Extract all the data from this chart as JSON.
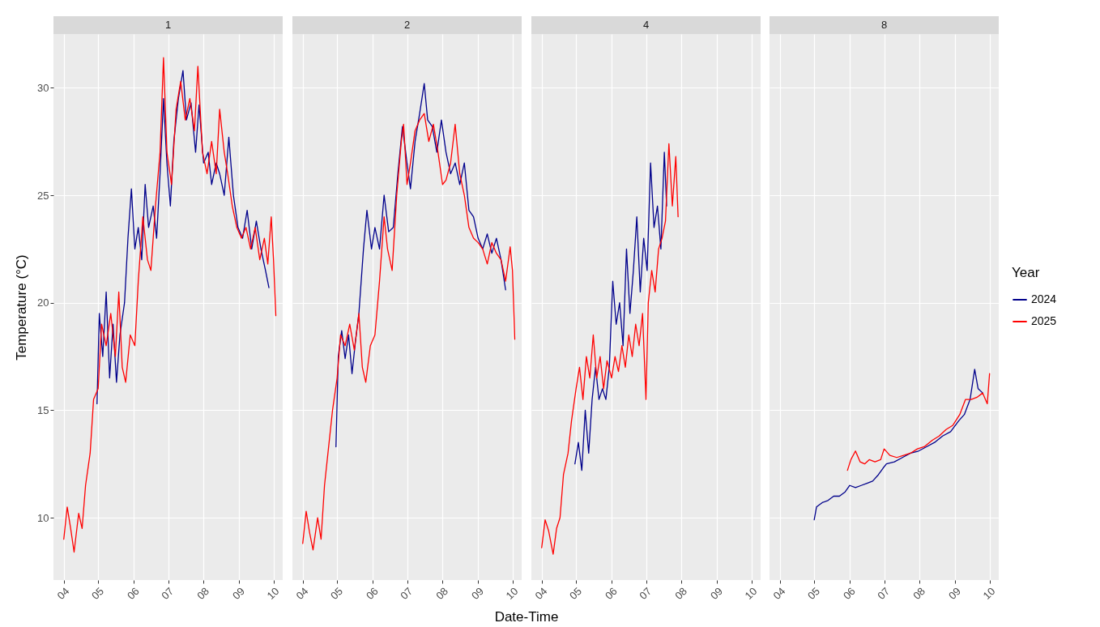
{
  "chart_data": [
    {
      "type": "line",
      "title": "1",
      "ylabel": "Temperature (°C)",
      "xlim": [
        "--03-23",
        "--10-09"
      ],
      "ylim": [
        7.1,
        32.5
      ],
      "xticks": [
        {
          "value": "--04-01",
          "label": "04"
        },
        {
          "value": "--05-01",
          "label": "05"
        },
        {
          "value": "--06-01",
          "label": "06"
        },
        {
          "value": "--07-01",
          "label": "07"
        },
        {
          "value": "--08-01",
          "label": "08"
        },
        {
          "value": "--09-01",
          "label": "09"
        },
        {
          "value": "--10-01",
          "label": "10"
        }
      ],
      "yticks": [
        10,
        15,
        20,
        25,
        30
      ],
      "grid": true,
      "series": [
        {
          "color": "#00008b",
          "x": [
            "--04-30",
            "--05-02",
            "--05-05",
            "--05-08",
            "--05-11",
            "--05-14",
            "--05-17",
            "--05-20",
            "--05-24",
            "--05-27",
            "--05-30",
            "--06-02",
            "--06-05",
            "--06-08",
            "--06-11",
            "--06-14",
            "--06-18",
            "--06-21",
            "--06-24",
            "--06-27",
            "--06-30",
            "--07-03",
            "--07-06",
            "--07-10",
            "--07-14",
            "--07-17",
            "--07-21",
            "--07-25",
            "--07-28",
            "--08-01",
            "--08-05",
            "--08-08",
            "--08-12",
            "--08-15",
            "--08-19",
            "--08-23",
            "--08-27",
            "--08-31",
            "--09-04",
            "--09-08",
            "--09-12",
            "--09-16",
            "--09-20",
            "--09-24",
            "--09-27"
          ],
          "values": [
            15.3,
            19.5,
            17.5,
            20.5,
            16.5,
            19,
            16.3,
            18.5,
            20,
            23,
            25.3,
            22.5,
            23.5,
            22,
            25.5,
            23.5,
            24.5,
            23,
            26,
            29.5,
            26.5,
            24.5,
            27.5,
            29.5,
            30.8,
            28.5,
            29.3,
            27,
            29.2,
            26.5,
            27,
            25.5,
            26.5,
            26,
            25,
            27.7,
            25,
            23.5,
            23,
            24.3,
            22.5,
            23.8,
            22.5,
            21.5,
            20.7
          ]
        },
        {
          "color": "#ff0000",
          "x": [
            "--04-01",
            "--04-04",
            "--04-07",
            "--04-10",
            "--04-14",
            "--04-17",
            "--04-20",
            "--04-24",
            "--04-27",
            "--05-01",
            "--05-04",
            "--05-08",
            "--05-12",
            "--05-16",
            "--05-19",
            "--05-22",
            "--05-25",
            "--05-29",
            "--06-02",
            "--06-05",
            "--06-09",
            "--06-13",
            "--06-16",
            "--06-20",
            "--06-24",
            "--06-27",
            "--06-30",
            "--07-04",
            "--07-08",
            "--07-12",
            "--07-16",
            "--07-20",
            "--07-24",
            "--07-27",
            "--07-31",
            "--08-04",
            "--08-08",
            "--08-12",
            "--08-15",
            "--08-19",
            "--08-22",
            "--08-26",
            "--08-30",
            "--09-03",
            "--09-07",
            "--09-11",
            "--09-15",
            "--09-19",
            "--09-23",
            "--09-26",
            "--09-29",
            "--10-01",
            "--10-03"
          ],
          "values": [
            9,
            10.5,
            9.5,
            8.4,
            10.2,
            9.5,
            11.5,
            13,
            15.5,
            16,
            19,
            18,
            19.5,
            17.5,
            20.5,
            17,
            16.3,
            18.5,
            18,
            21,
            24,
            22,
            21.5,
            24.5,
            27,
            31.4,
            27,
            25.5,
            29,
            30.3,
            28.5,
            29.5,
            28,
            31,
            27,
            26,
            27.5,
            26,
            29,
            27,
            26,
            24.5,
            23.5,
            23,
            23.5,
            22.5,
            23.5,
            22,
            23,
            21.8,
            24,
            22,
            19.4
          ]
        }
      ]
    },
    {
      "type": "line",
      "title": "2",
      "xlabel": "Date-Time",
      "xlim": [
        "--03-23",
        "--10-09"
      ],
      "ylim": [
        7.1,
        32.5
      ],
      "xticks": [
        {
          "value": "--04-01",
          "label": "04"
        },
        {
          "value": "--05-01",
          "label": "05"
        },
        {
          "value": "--06-01",
          "label": "06"
        },
        {
          "value": "--07-01",
          "label": "07"
        },
        {
          "value": "--08-01",
          "label": "08"
        },
        {
          "value": "--09-01",
          "label": "09"
        },
        {
          "value": "--10-01",
          "label": "10"
        }
      ],
      "yticks": [
        10,
        15,
        20,
        25,
        30
      ],
      "grid": true,
      "tick_labels": "x",
      "series": [
        {
          "color": "#00008b",
          "x": [
            "--04-30",
            "--05-02",
            "--05-05",
            "--05-08",
            "--05-11",
            "--05-14",
            "--05-17",
            "--05-20",
            "--05-24",
            "--05-27",
            "--05-31",
            "--06-03",
            "--06-07",
            "--06-11",
            "--06-15",
            "--06-19",
            "--06-23",
            "--06-27",
            "--07-01",
            "--07-04",
            "--07-08",
            "--07-12",
            "--07-16",
            "--07-19",
            "--07-23",
            "--07-27",
            "--07-31",
            "--08-04",
            "--08-08",
            "--08-12",
            "--08-16",
            "--08-20",
            "--08-24",
            "--08-28",
            "--09-01",
            "--09-05",
            "--09-09",
            "--09-13",
            "--09-17",
            "--09-21",
            "--09-25"
          ],
          "values": [
            13.3,
            17.5,
            18.7,
            17.4,
            18.5,
            16.7,
            18.2,
            19.5,
            22.5,
            24.3,
            22.5,
            23.5,
            22.5,
            25,
            23.3,
            23.5,
            26,
            28.2,
            26.5,
            25.3,
            27.5,
            28.8,
            30.2,
            28.5,
            28.2,
            27,
            28.5,
            27,
            26,
            26.5,
            25.5,
            26.5,
            24.3,
            24,
            23,
            22.5,
            23.2,
            22.3,
            23,
            22,
            20.6
          ]
        },
        {
          "color": "#ff0000",
          "x": [
            "--04-01",
            "--04-04",
            "--04-07",
            "--04-10",
            "--04-14",
            "--04-17",
            "--04-20",
            "--04-24",
            "--04-27",
            "--05-01",
            "--05-04",
            "--05-08",
            "--05-12",
            "--05-16",
            "--05-20",
            "--05-23",
            "--05-26",
            "--05-30",
            "--06-03",
            "--06-07",
            "--06-11",
            "--06-14",
            "--06-18",
            "--06-22",
            "--06-26",
            "--06-28",
            "--07-01",
            "--07-04",
            "--07-08",
            "--07-12",
            "--07-16",
            "--07-20",
            "--07-24",
            "--07-28",
            "--08-01",
            "--08-04",
            "--08-08",
            "--08-12",
            "--08-16",
            "--08-20",
            "--08-24",
            "--08-28",
            "--09-01",
            "--09-05",
            "--09-09",
            "--09-13",
            "--09-17",
            "--09-21",
            "--09-25",
            "--09-29",
            "--10-01",
            "--10-03"
          ],
          "values": [
            8.8,
            10.3,
            9.3,
            8.5,
            10,
            9,
            11.5,
            13.5,
            15,
            16.5,
            18.5,
            18,
            19,
            17.8,
            19.5,
            17,
            16.3,
            18,
            18.5,
            21,
            24,
            22.5,
            21.5,
            25,
            27.5,
            28.3,
            25.5,
            26.5,
            28,
            28.5,
            28.8,
            27.5,
            28.3,
            27,
            25.5,
            25.7,
            26.5,
            28.3,
            26,
            25,
            23.5,
            23,
            22.8,
            22.5,
            21.8,
            22.8,
            22.3,
            22,
            21,
            22.6,
            21.5,
            18.3
          ]
        }
      ]
    },
    {
      "type": "line",
      "title": "4",
      "xlim": [
        "--03-23",
        "--10-09"
      ],
      "ylim": [
        7.1,
        32.5
      ],
      "xticks": [
        {
          "value": "--04-01",
          "label": "04"
        },
        {
          "value": "--05-01",
          "label": "05"
        },
        {
          "value": "--06-01",
          "label": "06"
        },
        {
          "value": "--07-01",
          "label": "07"
        },
        {
          "value": "--08-01",
          "label": "08"
        },
        {
          "value": "--09-01",
          "label": "09"
        },
        {
          "value": "--10-01",
          "label": "10"
        }
      ],
      "yticks": [
        10,
        15,
        20,
        25,
        30
      ],
      "grid": true,
      "tick_labels": "x",
      "series": [
        {
          "color": "#00008b",
          "x": [
            "--04-30",
            "--05-03",
            "--05-06",
            "--05-09",
            "--05-12",
            "--05-15",
            "--05-18",
            "--05-21",
            "--05-24",
            "--05-27",
            "--05-30",
            "--06-02",
            "--06-05",
            "--06-08",
            "--06-11",
            "--06-14",
            "--06-17",
            "--06-20",
            "--06-23",
            "--06-26",
            "--06-29",
            "--07-02",
            "--07-05",
            "--07-08",
            "--07-11",
            "--07-14",
            "--07-17",
            "--07-19"
          ],
          "values": [
            12.5,
            13.5,
            12.2,
            15,
            13,
            15.5,
            17,
            15.5,
            16,
            15.5,
            17,
            21,
            19,
            20,
            18,
            22.5,
            19.5,
            21.5,
            24,
            20.5,
            23,
            21.5,
            26.5,
            23.5,
            24.5,
            22.5,
            27,
            24.5
          ]
        },
        {
          "color": "#ff0000",
          "x": [
            "--04-01",
            "--04-04",
            "--04-07",
            "--04-11",
            "--04-14",
            "--04-17",
            "--04-20",
            "--04-24",
            "--04-27",
            "--05-01",
            "--05-04",
            "--05-07",
            "--05-10",
            "--05-13",
            "--05-16",
            "--05-19",
            "--05-22",
            "--05-25",
            "--05-28",
            "--06-01",
            "--06-04",
            "--06-07",
            "--06-10",
            "--06-13",
            "--06-16",
            "--06-19",
            "--06-22",
            "--06-25",
            "--06-28",
            "--07-01",
            "--07-03",
            "--07-06",
            "--07-09",
            "--07-12",
            "--07-15",
            "--07-18",
            "--07-21",
            "--07-24",
            "--07-27",
            "--07-29"
          ],
          "values": [
            8.6,
            9.9,
            9.4,
            8.3,
            9.5,
            10,
            12,
            13,
            14.5,
            16,
            17,
            15.5,
            17.5,
            16.5,
            18.5,
            16.5,
            17.5,
            16,
            17.3,
            16.5,
            17.5,
            16.8,
            18,
            17,
            18.5,
            17.5,
            19,
            18,
            19.5,
            15.5,
            20,
            21.5,
            20.5,
            22.5,
            23,
            23.8,
            27.4,
            24.5,
            26.8,
            24
          ]
        }
      ]
    },
    {
      "type": "line",
      "title": "8",
      "legend_title": "Year",
      "legend": "right",
      "xlim": [
        "--03-23",
        "--10-09"
      ],
      "ylim": [
        7.1,
        32.5
      ],
      "xticks": [
        {
          "value": "--04-01",
          "label": "04"
        },
        {
          "value": "--05-01",
          "label": "05"
        },
        {
          "value": "--06-01",
          "label": "06"
        },
        {
          "value": "--07-01",
          "label": "07"
        },
        {
          "value": "--08-01",
          "label": "08"
        },
        {
          "value": "--09-01",
          "label": "09"
        },
        {
          "value": "--10-01",
          "label": "10"
        }
      ],
      "yticks": [
        10,
        15,
        20,
        25,
        30
      ],
      "grid": true,
      "tick_labels": "x",
      "series": [
        {
          "name": "2024",
          "color": "#00008b",
          "x": [
            "--05-01",
            "--05-03",
            "--05-08",
            "--05-13",
            "--05-18",
            "--05-23",
            "--05-28",
            "--06-01",
            "--06-06",
            "--06-11",
            "--06-16",
            "--06-21",
            "--06-26",
            "--06-30",
            "--07-03",
            "--07-10",
            "--07-17",
            "--07-24",
            "--07-31",
            "--08-07",
            "--08-14",
            "--08-21",
            "--08-28",
            "--09-04",
            "--09-09",
            "--09-14",
            "--09-18",
            "--09-21",
            "--09-25"
          ],
          "values": [
            9.9,
            10.5,
            10.7,
            10.8,
            11,
            11,
            11.2,
            11.5,
            11.4,
            11.5,
            11.6,
            11.7,
            12,
            12.3,
            12.5,
            12.6,
            12.8,
            13,
            13.1,
            13.3,
            13.5,
            13.8,
            14,
            14.5,
            14.8,
            15.5,
            16.9,
            16,
            15.8
          ]
        },
        {
          "name": "2025",
          "color": "#ff0000",
          "x": [
            "--05-30",
            "--06-02",
            "--06-06",
            "--06-10",
            "--06-14",
            "--06-18",
            "--06-23",
            "--06-28",
            "--07-01",
            "--07-06",
            "--07-12",
            "--07-18",
            "--07-24",
            "--07-30",
            "--08-05",
            "--08-12",
            "--08-18",
            "--08-24",
            "--08-30",
            "--09-05",
            "--09-10",
            "--09-15",
            "--09-20",
            "--09-25",
            "--09-29",
            "--10-01"
          ],
          "values": [
            12.2,
            12.7,
            13.1,
            12.6,
            12.5,
            12.7,
            12.6,
            12.7,
            13.2,
            12.9,
            12.8,
            12.9,
            13,
            13.2,
            13.3,
            13.6,
            13.8,
            14.1,
            14.3,
            14.8,
            15.5,
            15.5,
            15.6,
            15.8,
            15.3,
            16.7
          ]
        }
      ]
    }
  ]
}
